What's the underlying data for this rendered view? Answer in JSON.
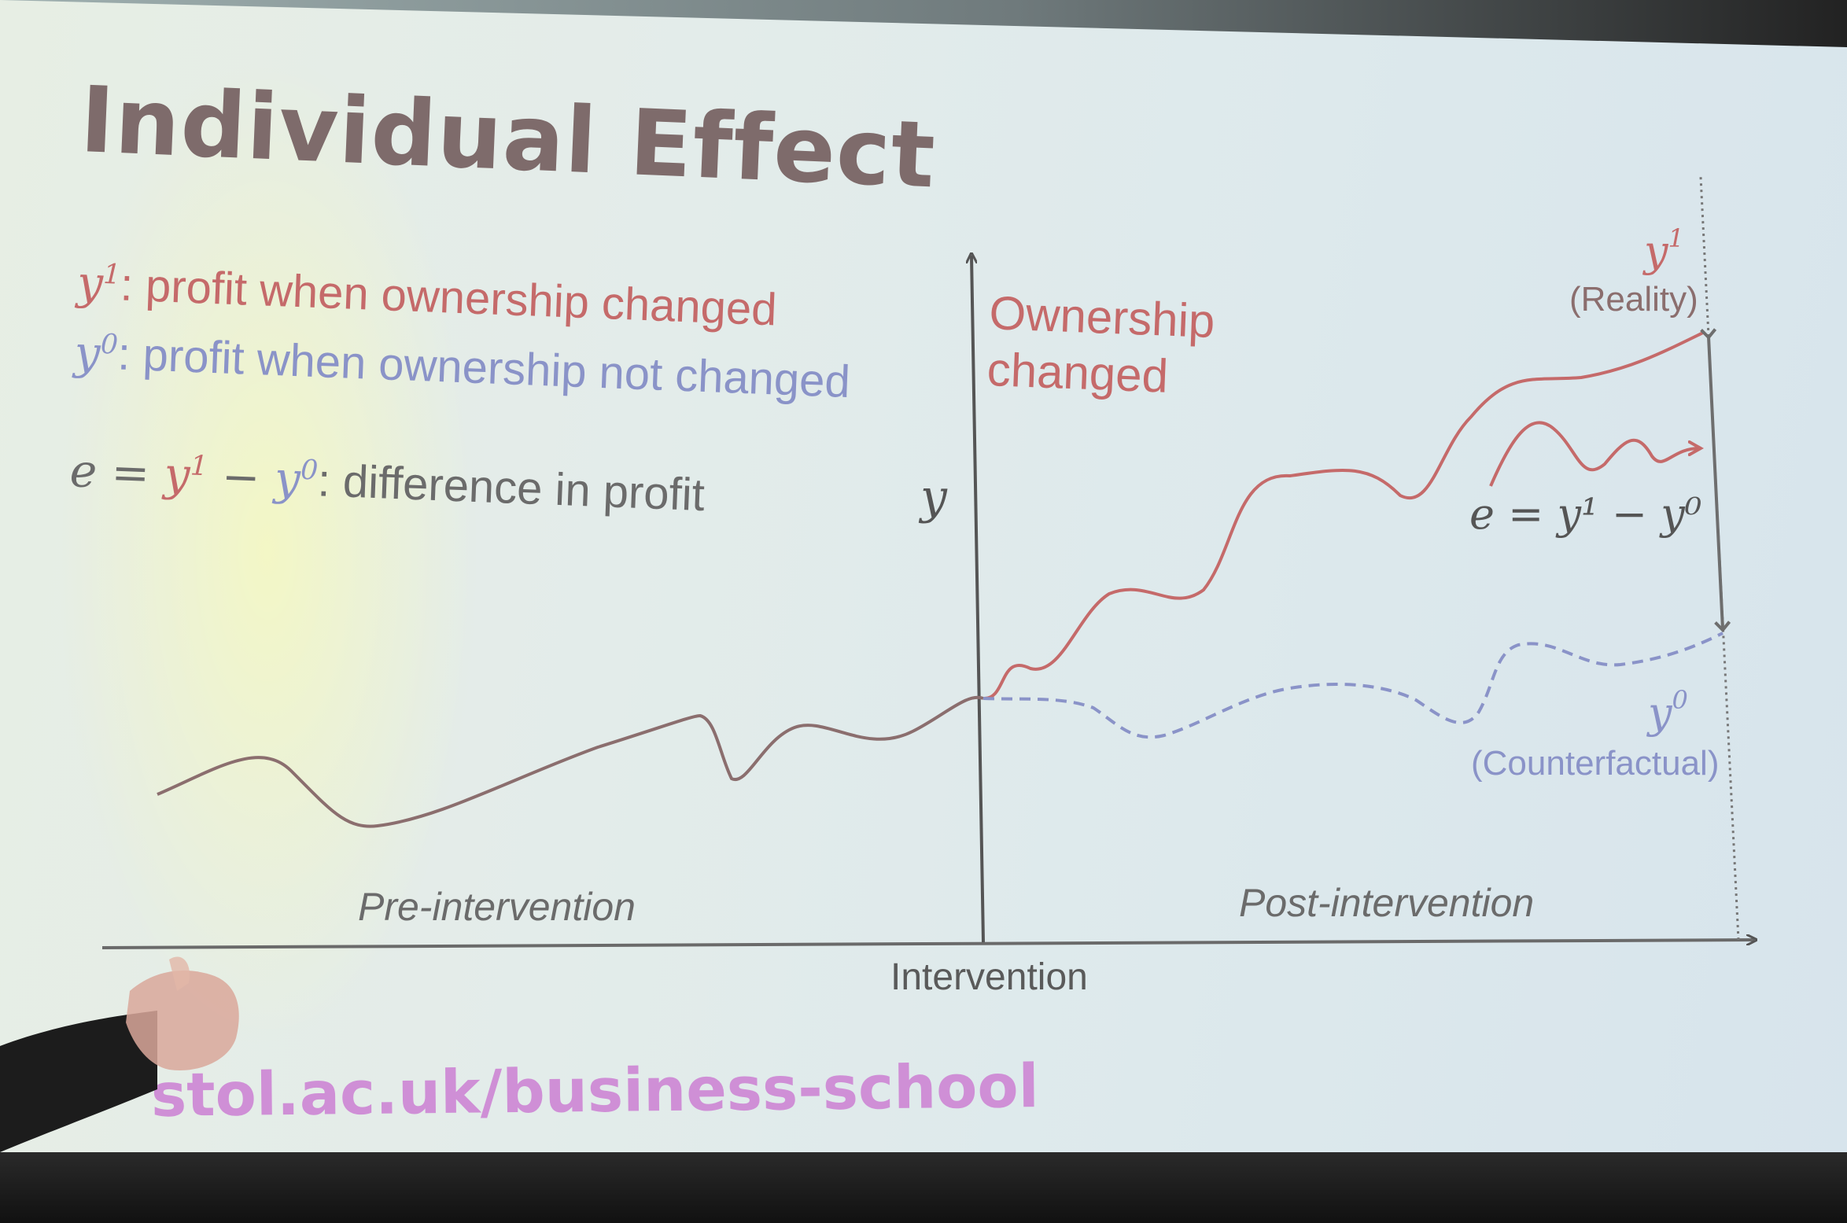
{
  "slide": {
    "title": "Individual Effect",
    "legend": {
      "y1_symbol": "y",
      "y1_sup": "1",
      "y1_text": ": profit when ownership changed",
      "y0_symbol": "y",
      "y0_sup": "0",
      "y0_text": ": profit when ownership not changed",
      "eq_e": "e",
      "eq_equals": " = ",
      "eq_y1": "y",
      "eq_y1_sup": "1",
      "eq_minus": " − ",
      "eq_y0": "y",
      "eq_y0_sup": "0",
      "eq_text": ": difference in profit"
    },
    "diagram": {
      "y_axis_label": "y",
      "ownership_line1": "Ownership",
      "ownership_line2": "changed",
      "reality_symbol": "y",
      "reality_sup": "1",
      "reality_label": "(Reality)",
      "effect_label": "e = y¹ − y⁰",
      "counterfactual_symbol": "y",
      "counterfactual_sup": "0",
      "counterfactual_label": "(Counterfactual)",
      "pre_label": "Pre-intervention",
      "post_label": "Post-intervention",
      "x_axis_label": "Intervention"
    },
    "footer_url": "stol.ac.uk/business-school",
    "colors": {
      "title": "#7e6b6b",
      "reality": "#c56a6a",
      "counterfactual": "#8a93c8",
      "url": "#cf8fd6"
    }
  }
}
